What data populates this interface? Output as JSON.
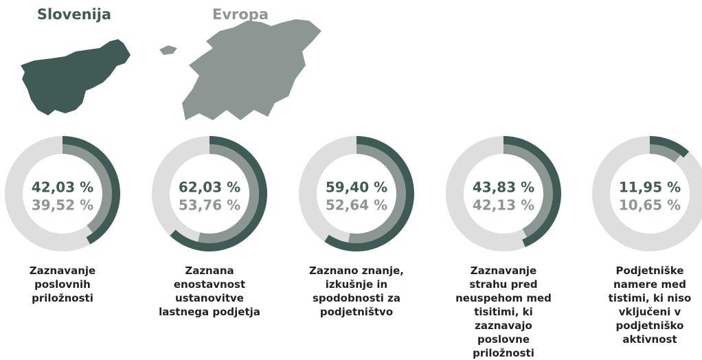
{
  "chart_data": {
    "type": "donut",
    "categories": [
      "Zaznavanje poslovnih priložnosti",
      "Zaznana enostavnost ustanovitve lastnega podjetja",
      "Zaznano znanje, izkušnje in spodobnosti za podjetništvo",
      "Zaznavanje strahu pred neuspehom med tisitimi, ki zaznavajo poslovne priložnosti",
      "Podjetniške namere med tistimi, ki niso vključeni v podjetniško aktivnost"
    ],
    "ylim": [
      0,
      100
    ],
    "series": [
      {
        "name": "Slovenija",
        "color": "#3e5b56",
        "values": [
          42.03,
          62.03,
          59.4,
          43.83,
          11.95
        ],
        "value_labels": [
          "42,03 %",
          "62,03 %",
          "59,40 %",
          "43,83 %",
          "11,95 %"
        ]
      },
      {
        "name": "Evropa",
        "color": "#8c9794",
        "values": [
          39.52,
          53.76,
          52.64,
          42.13,
          10.65
        ],
        "value_labels": [
          "39,52 %",
          "53,76 %",
          "52,64 %",
          "42,13 %",
          "10,65 %"
        ]
      }
    ]
  }
}
